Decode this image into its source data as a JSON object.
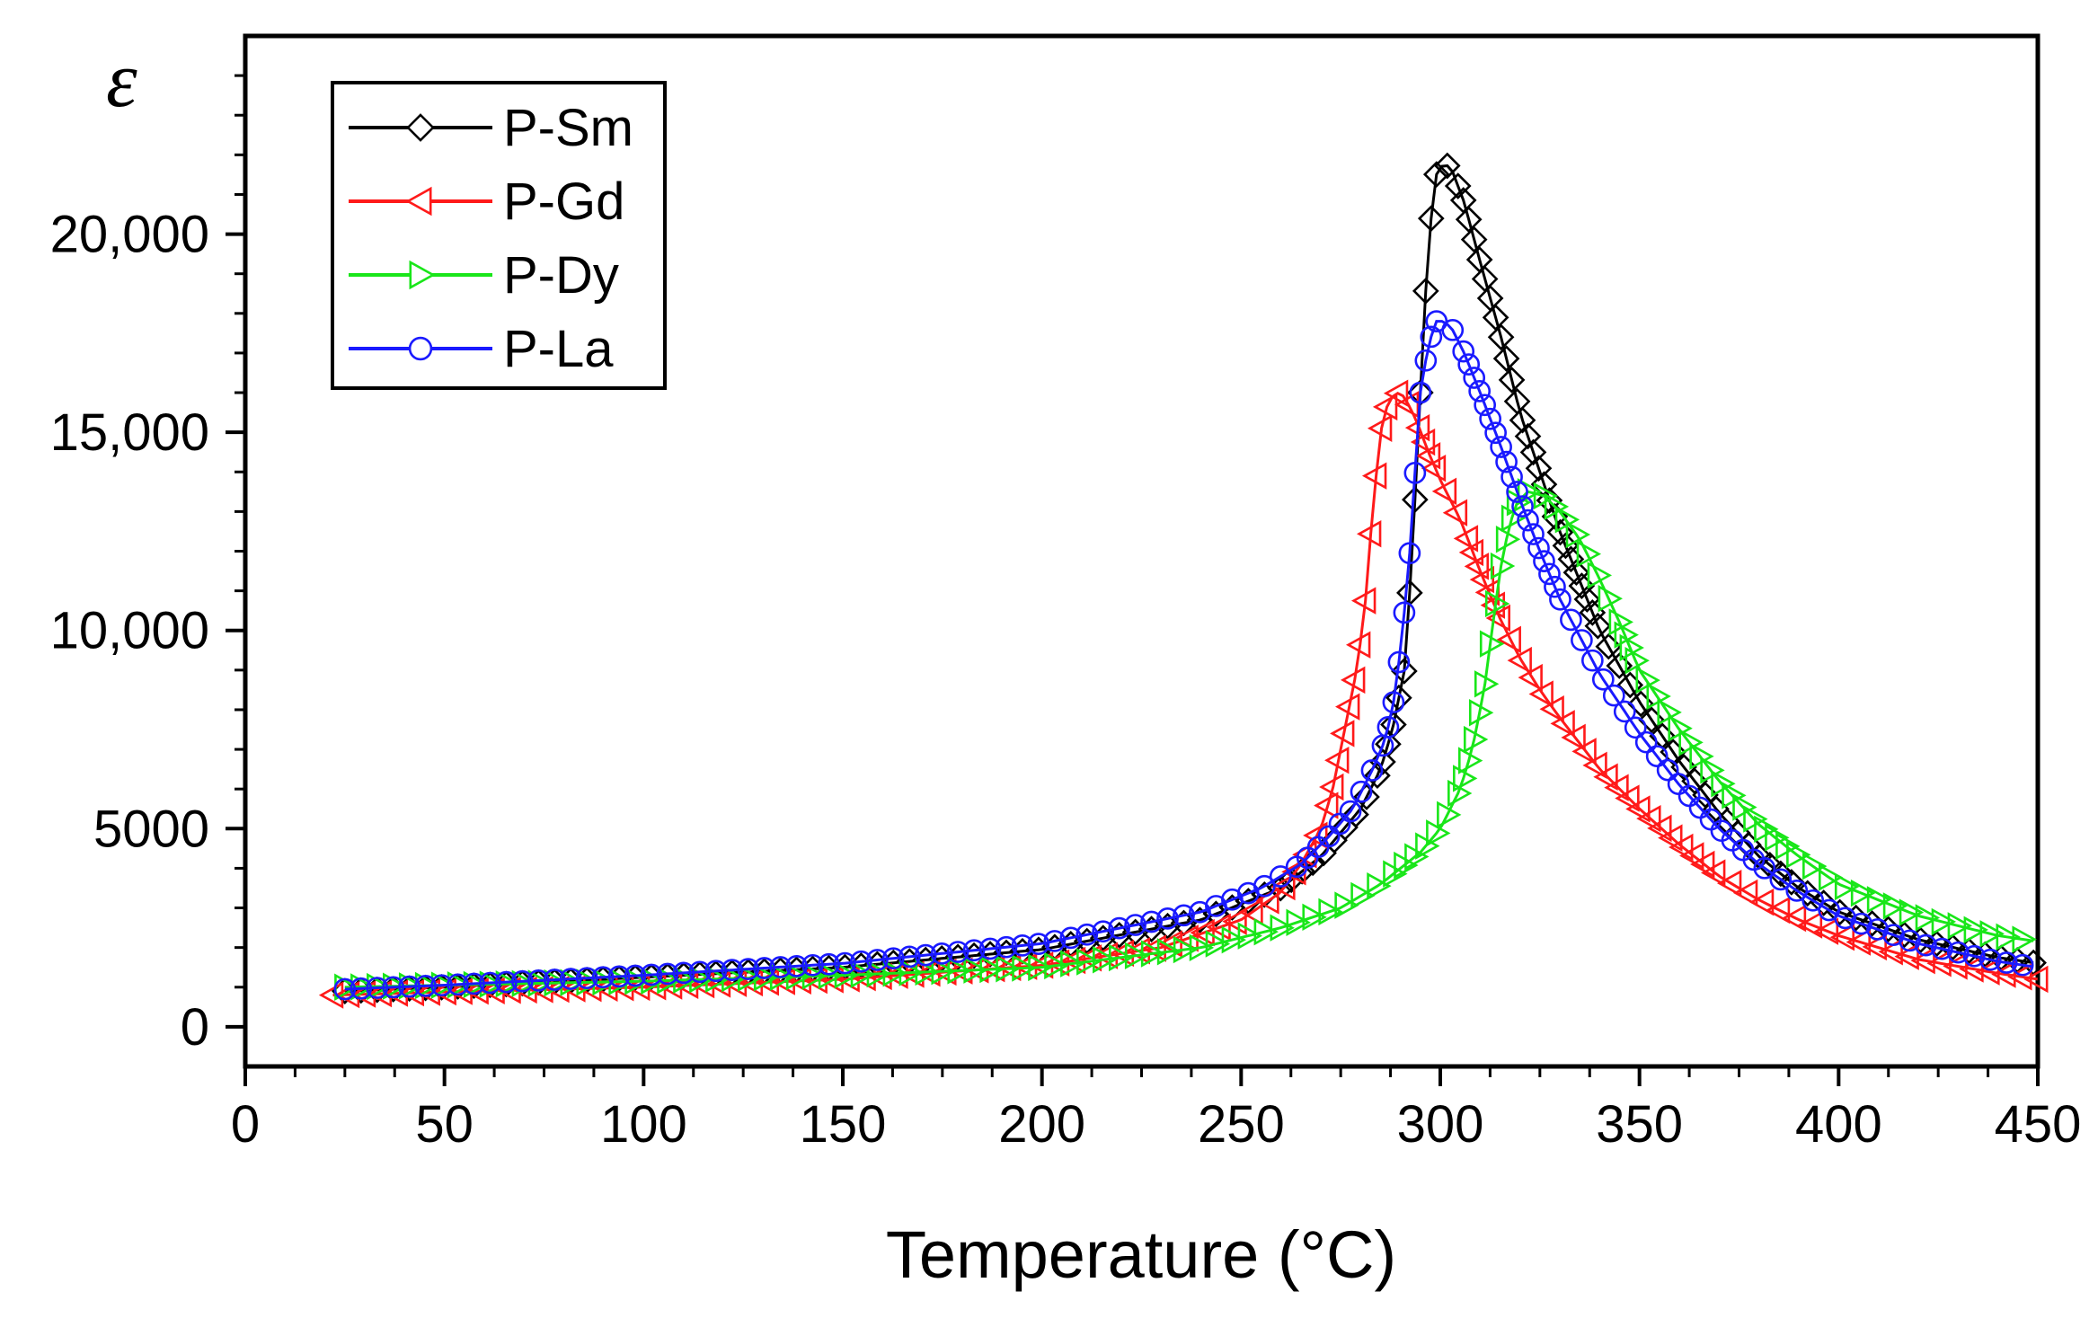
{
  "chart_data": {
    "type": "line",
    "title": "",
    "xlabel": "Temperature (°C)",
    "ylabel": "ε",
    "xlim": [
      0,
      450
    ],
    "ylim": [
      -1000,
      25000
    ],
    "x_ticks": [
      0,
      50,
      100,
      150,
      200,
      250,
      300,
      350,
      400,
      450
    ],
    "x_tick_labels": [
      "0",
      "50",
      "100",
      "150",
      "200",
      "250",
      "300",
      "350",
      "400",
      "450"
    ],
    "y_ticks": [
      0,
      5000,
      10000,
      15000,
      20000
    ],
    "y_tick_labels": [
      "0",
      "5000",
      "10,000",
      "15,000",
      "20,000"
    ],
    "legend_position": "top-left",
    "series": [
      {
        "name": "P-Sm",
        "color": "#000000",
        "marker": "diamond",
        "points": [
          [
            25,
            900
          ],
          [
            50,
            1000
          ],
          [
            100,
            1250
          ],
          [
            150,
            1500
          ],
          [
            200,
            1950
          ],
          [
            240,
            2700
          ],
          [
            260,
            3500
          ],
          [
            270,
            4300
          ],
          [
            280,
            5500
          ],
          [
            285,
            6500
          ],
          [
            288,
            7500
          ],
          [
            291,
            9000
          ],
          [
            293,
            12000
          ],
          [
            295,
            16000
          ],
          [
            297,
            19800
          ],
          [
            299,
            21500
          ],
          [
            301,
            21800
          ],
          [
            303,
            21600
          ],
          [
            306,
            20800
          ],
          [
            310,
            19300
          ],
          [
            315,
            17500
          ],
          [
            320,
            15500
          ],
          [
            325,
            14000
          ],
          [
            330,
            12500
          ],
          [
            340,
            10000
          ],
          [
            350,
            8200
          ],
          [
            360,
            6700
          ],
          [
            370,
            5400
          ],
          [
            380,
            4300
          ],
          [
            390,
            3500
          ],
          [
            400,
            2900
          ],
          [
            420,
            2200
          ],
          [
            440,
            1750
          ],
          [
            450,
            1600
          ]
        ]
      },
      {
        "name": "P-Gd",
        "color": "#ff1a1a",
        "marker": "triangle-left",
        "points": [
          [
            22,
            800
          ],
          [
            50,
            880
          ],
          [
            100,
            1000
          ],
          [
            150,
            1200
          ],
          [
            200,
            1550
          ],
          [
            230,
            2000
          ],
          [
            250,
            2700
          ],
          [
            260,
            3400
          ],
          [
            265,
            4100
          ],
          [
            270,
            5000
          ],
          [
            273,
            6000
          ],
          [
            276,
            7500
          ],
          [
            279,
            9000
          ],
          [
            281,
            10500
          ],
          [
            283,
            13000
          ],
          [
            285,
            15000
          ],
          [
            287,
            15800
          ],
          [
            289,
            16000
          ],
          [
            291,
            15900
          ],
          [
            294,
            15300
          ],
          [
            297,
            14500
          ],
          [
            300,
            13800
          ],
          [
            305,
            12800
          ],
          [
            310,
            11500
          ],
          [
            315,
            10300
          ],
          [
            320,
            9300
          ],
          [
            325,
            8500
          ],
          [
            330,
            7800
          ],
          [
            340,
            6500
          ],
          [
            350,
            5500
          ],
          [
            360,
            4600
          ],
          [
            370,
            3800
          ],
          [
            380,
            3200
          ],
          [
            390,
            2700
          ],
          [
            400,
            2300
          ],
          [
            420,
            1700
          ],
          [
            440,
            1350
          ],
          [
            450,
            1200
          ]
        ]
      },
      {
        "name": "P-Dy",
        "color": "#19e619",
        "marker": "triangle-right",
        "points": [
          [
            25,
            1000
          ],
          [
            50,
            1050
          ],
          [
            100,
            1150
          ],
          [
            150,
            1300
          ],
          [
            200,
            1500
          ],
          [
            240,
            2000
          ],
          [
            260,
            2500
          ],
          [
            275,
            3000
          ],
          [
            285,
            3600
          ],
          [
            295,
            4400
          ],
          [
            300,
            5000
          ],
          [
            305,
            6000
          ],
          [
            308,
            7000
          ],
          [
            311,
            8500
          ],
          [
            313,
            10000
          ],
          [
            315,
            11500
          ],
          [
            317,
            12500
          ],
          [
            319,
            13200
          ],
          [
            322,
            13500
          ],
          [
            326,
            13400
          ],
          [
            330,
            13000
          ],
          [
            335,
            12300
          ],
          [
            340,
            11300
          ],
          [
            345,
            10200
          ],
          [
            350,
            9000
          ],
          [
            360,
            7500
          ],
          [
            370,
            6200
          ],
          [
            380,
            5100
          ],
          [
            390,
            4300
          ],
          [
            400,
            3600
          ],
          [
            420,
            2800
          ],
          [
            440,
            2300
          ],
          [
            450,
            2150
          ]
        ]
      },
      {
        "name": "P-La",
        "color": "#1a1aff",
        "marker": "circle",
        "points": [
          [
            25,
            950
          ],
          [
            50,
            1050
          ],
          [
            100,
            1300
          ],
          [
            150,
            1600
          ],
          [
            200,
            2100
          ],
          [
            240,
            2900
          ],
          [
            255,
            3500
          ],
          [
            265,
            4100
          ],
          [
            272,
            4800
          ],
          [
            278,
            5500
          ],
          [
            283,
            6500
          ],
          [
            286,
            7200
          ],
          [
            288,
            8000
          ],
          [
            290,
            9500
          ],
          [
            292,
            11500
          ],
          [
            293,
            13000
          ],
          [
            294,
            14500
          ],
          [
            295,
            16000
          ],
          [
            297,
            17200
          ],
          [
            299,
            17800
          ],
          [
            301,
            17800
          ],
          [
            303,
            17600
          ],
          [
            306,
            17000
          ],
          [
            310,
            16000
          ],
          [
            315,
            14700
          ],
          [
            320,
            13300
          ],
          [
            325,
            12000
          ],
          [
            330,
            10800
          ],
          [
            340,
            8900
          ],
          [
            350,
            7400
          ],
          [
            360,
            6100
          ],
          [
            370,
            5000
          ],
          [
            380,
            4100
          ],
          [
            390,
            3400
          ],
          [
            400,
            2800
          ],
          [
            420,
            2100
          ],
          [
            440,
            1650
          ],
          [
            450,
            1500
          ]
        ]
      }
    ]
  }
}
